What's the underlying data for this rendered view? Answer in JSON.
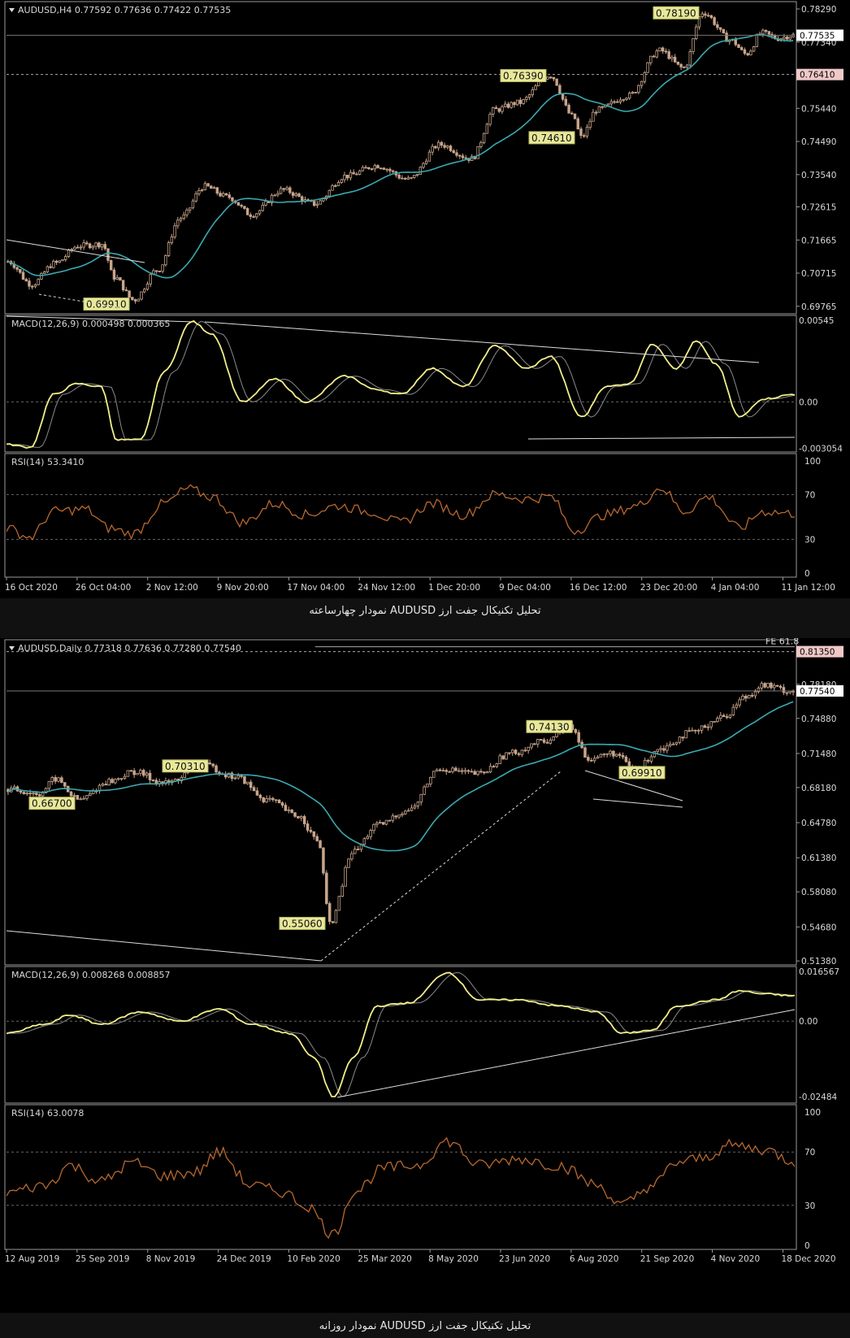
{
  "colors": {
    "background": "#000000",
    "frame": "#9a9a9a",
    "candle": "#c8a58c",
    "ma": "#3aa9b0",
    "macd": "#f2ee8a",
    "signal": "#8a8a8a",
    "rsi": "#b8682e",
    "annotation_bg": "#e8e89a",
    "annotation_border": "#b8b860",
    "price_box": "#ffffff",
    "level_box": "#f0c8c8"
  },
  "chart_data": [
    {
      "type": "candlestick",
      "symbol_header": "AUDUSD,H4  0.77592 0.77636 0.77422 0.77535",
      "price_ticks": [
        "0.78290",
        "0.77340",
        "0.75440",
        "0.74490",
        "0.73540",
        "0.72615",
        "0.71665",
        "0.70715",
        "0.69765"
      ],
      "price_range": [
        0.6955,
        0.785
      ],
      "current_price": "0.77535",
      "level_box": "0.76410",
      "annotations": [
        "0.78190",
        "0.76390",
        "0.74610",
        "0.69910"
      ],
      "anchors": [
        {
          "t": 0,
          "p": 0.7105
        },
        {
          "t": 0.03,
          "p": 0.704
        },
        {
          "t": 0.06,
          "p": 0.71
        },
        {
          "t": 0.09,
          "p": 0.715
        },
        {
          "t": 0.12,
          "p": 0.7155
        },
        {
          "t": 0.135,
          "p": 0.706
        },
        {
          "t": 0.16,
          "p": 0.6995
        },
        {
          "t": 0.19,
          "p": 0.708
        },
        {
          "t": 0.22,
          "p": 0.723
        },
        {
          "t": 0.25,
          "p": 0.732
        },
        {
          "t": 0.28,
          "p": 0.729
        },
        {
          "t": 0.31,
          "p": 0.724
        },
        {
          "t": 0.35,
          "p": 0.731
        },
        {
          "t": 0.39,
          "p": 0.727
        },
        {
          "t": 0.43,
          "p": 0.735
        },
        {
          "t": 0.47,
          "p": 0.738
        },
        {
          "t": 0.51,
          "p": 0.734
        },
        {
          "t": 0.55,
          "p": 0.744
        },
        {
          "t": 0.59,
          "p": 0.74
        },
        {
          "t": 0.62,
          "p": 0.754
        },
        {
          "t": 0.65,
          "p": 0.756
        },
        {
          "t": 0.69,
          "p": 0.7639
        },
        {
          "t": 0.72,
          "p": 0.752
        },
        {
          "t": 0.73,
          "p": 0.7461
        },
        {
          "t": 0.75,
          "p": 0.754
        },
        {
          "t": 0.79,
          "p": 0.758
        },
        {
          "t": 0.83,
          "p": 0.771
        },
        {
          "t": 0.86,
          "p": 0.766
        },
        {
          "t": 0.885,
          "p": 0.7819
        },
        {
          "t": 0.92,
          "p": 0.774
        },
        {
          "t": 0.94,
          "p": 0.77
        },
        {
          "t": 0.96,
          "p": 0.776
        },
        {
          "t": 0.98,
          "p": 0.7745
        },
        {
          "t": 1,
          "p": 0.7754
        }
      ],
      "macd_header": "MACD(12,26,9) 0.000498 0.000365",
      "macd_ticks": [
        "0.00545",
        "0.00",
        "-0.003054"
      ],
      "macd_range": [
        -0.0033,
        0.0057
      ],
      "macd_anchors": [
        {
          "t": 0,
          "v": -0.0028
        },
        {
          "t": 0.03,
          "v": -0.003
        },
        {
          "t": 0.06,
          "v": 0.0005
        },
        {
          "t": 0.09,
          "v": 0.0012
        },
        {
          "t": 0.12,
          "v": 0.001
        },
        {
          "t": 0.14,
          "v": -0.0025
        },
        {
          "t": 0.17,
          "v": -0.0025
        },
        {
          "t": 0.2,
          "v": 0.002
        },
        {
          "t": 0.235,
          "v": 0.0053
        },
        {
          "t": 0.26,
          "v": 0.0045
        },
        {
          "t": 0.3,
          "v": 0.0
        },
        {
          "t": 0.34,
          "v": 0.0015
        },
        {
          "t": 0.38,
          "v": 0.0
        },
        {
          "t": 0.43,
          "v": 0.0017
        },
        {
          "t": 0.47,
          "v": 0.0008
        },
        {
          "t": 0.5,
          "v": 0.0005
        },
        {
          "t": 0.54,
          "v": 0.0022
        },
        {
          "t": 0.58,
          "v": 0.001
        },
        {
          "t": 0.62,
          "v": 0.0037
        },
        {
          "t": 0.66,
          "v": 0.0022
        },
        {
          "t": 0.69,
          "v": 0.003
        },
        {
          "t": 0.73,
          "v": -0.001
        },
        {
          "t": 0.76,
          "v": 0.001
        },
        {
          "t": 0.79,
          "v": 0.0012
        },
        {
          "t": 0.82,
          "v": 0.0038
        },
        {
          "t": 0.85,
          "v": 0.0022
        },
        {
          "t": 0.875,
          "v": 0.004
        },
        {
          "t": 0.9,
          "v": 0.0025
        },
        {
          "t": 0.93,
          "v": -0.001
        },
        {
          "t": 0.96,
          "v": 0.0002
        },
        {
          "t": 1,
          "v": 0.0005
        }
      ],
      "rsi_header": "RSI(14) 53.3410",
      "rsi_ticks": [
        "100",
        "70",
        "30",
        "0"
      ],
      "rsi_anchors": [
        {
          "t": 0,
          "v": 40
        },
        {
          "t": 0.03,
          "v": 32
        },
        {
          "t": 0.06,
          "v": 55
        },
        {
          "t": 0.1,
          "v": 57
        },
        {
          "t": 0.13,
          "v": 40
        },
        {
          "t": 0.16,
          "v": 35
        },
        {
          "t": 0.2,
          "v": 62
        },
        {
          "t": 0.23,
          "v": 75
        },
        {
          "t": 0.26,
          "v": 68
        },
        {
          "t": 0.3,
          "v": 45
        },
        {
          "t": 0.34,
          "v": 62
        },
        {
          "t": 0.38,
          "v": 52
        },
        {
          "t": 0.42,
          "v": 60
        },
        {
          "t": 0.46,
          "v": 55
        },
        {
          "t": 0.5,
          "v": 45
        },
        {
          "t": 0.54,
          "v": 62
        },
        {
          "t": 0.58,
          "v": 52
        },
        {
          "t": 0.62,
          "v": 70
        },
        {
          "t": 0.66,
          "v": 66
        },
        {
          "t": 0.69,
          "v": 68
        },
        {
          "t": 0.72,
          "v": 38
        },
        {
          "t": 0.76,
          "v": 52
        },
        {
          "t": 0.8,
          "v": 60
        },
        {
          "t": 0.83,
          "v": 76
        },
        {
          "t": 0.86,
          "v": 55
        },
        {
          "t": 0.89,
          "v": 68
        },
        {
          "t": 0.93,
          "v": 40
        },
        {
          "t": 0.96,
          "v": 55
        },
        {
          "t": 1,
          "v": 53
        }
      ],
      "dates": [
        "16 Oct 2020",
        "26 Oct 04:00",
        "2 Nov 12:00",
        "9 Nov 20:00",
        "17 Nov 04:00",
        "24 Nov 12:00",
        "1 Dec 20:00",
        "9 Dec 04:00",
        "16 Dec 12:00",
        "23 Dec 20:00",
        "4 Jan 04:00",
        "11 Jan 12:00"
      ]
    },
    {
      "type": "candlestick",
      "symbol_header": "AUDUSD,Daily  0.77318 0.77636 0.77280 0.77540",
      "fe_label": "FE 61.8",
      "price_ticks": [
        "0.78180",
        "0.74880",
        "0.71480",
        "0.68180",
        "0.64780",
        "0.61380",
        "0.58080",
        "0.54680",
        "0.51380"
      ],
      "price_range": [
        0.51,
        0.825
      ],
      "current_price": "0.77540",
      "level_box": "0.81350",
      "annotations": [
        "0.74130",
        "0.70310",
        "0.66700",
        "0.69910",
        "0.55060"
      ],
      "anchors": [
        {
          "t": 0,
          "p": 0.68
        },
        {
          "t": 0.04,
          "p": 0.676
        },
        {
          "t": 0.06,
          "p": 0.69
        },
        {
          "t": 0.09,
          "p": 0.67
        },
        {
          "t": 0.13,
          "p": 0.688
        },
        {
          "t": 0.16,
          "p": 0.697
        },
        {
          "t": 0.2,
          "p": 0.686
        },
        {
          "t": 0.25,
          "p": 0.703
        },
        {
          "t": 0.29,
          "p": 0.692
        },
        {
          "t": 0.33,
          "p": 0.67
        },
        {
          "t": 0.37,
          "p": 0.654
        },
        {
          "t": 0.395,
          "p": 0.63
        },
        {
          "t": 0.41,
          "p": 0.551
        },
        {
          "t": 0.44,
          "p": 0.62
        },
        {
          "t": 0.47,
          "p": 0.645
        },
        {
          "t": 0.51,
          "p": 0.66
        },
        {
          "t": 0.55,
          "p": 0.7
        },
        {
          "t": 0.6,
          "p": 0.695
        },
        {
          "t": 0.64,
          "p": 0.715
        },
        {
          "t": 0.68,
          "p": 0.726
        },
        {
          "t": 0.715,
          "p": 0.741
        },
        {
          "t": 0.74,
          "p": 0.71
        },
        {
          "t": 0.77,
          "p": 0.715
        },
        {
          "t": 0.8,
          "p": 0.699
        },
        {
          "t": 0.83,
          "p": 0.72
        },
        {
          "t": 0.87,
          "p": 0.735
        },
        {
          "t": 0.91,
          "p": 0.75
        },
        {
          "t": 0.94,
          "p": 0.77
        },
        {
          "t": 0.96,
          "p": 0.781
        },
        {
          "t": 1,
          "p": 0.775
        }
      ],
      "macd_header": "MACD(12,26,9) 0.008268 0.008857",
      "macd_ticks": [
        "0.016567",
        "0.00",
        "-0.02484"
      ],
      "macd_range": [
        -0.027,
        0.018
      ],
      "macd_anchors": [
        {
          "t": 0,
          "v": -0.004
        },
        {
          "t": 0.05,
          "v": -0.001
        },
        {
          "t": 0.08,
          "v": 0.002
        },
        {
          "t": 0.12,
          "v": -0.001
        },
        {
          "t": 0.17,
          "v": 0.003
        },
        {
          "t": 0.22,
          "v": 0.0
        },
        {
          "t": 0.27,
          "v": 0.004
        },
        {
          "t": 0.31,
          "v": -0.001
        },
        {
          "t": 0.36,
          "v": -0.004
        },
        {
          "t": 0.39,
          "v": -0.012
        },
        {
          "t": 0.415,
          "v": -0.025
        },
        {
          "t": 0.44,
          "v": -0.012
        },
        {
          "t": 0.47,
          "v": 0.005
        },
        {
          "t": 0.51,
          "v": 0.006
        },
        {
          "t": 0.56,
          "v": 0.016
        },
        {
          "t": 0.6,
          "v": 0.007
        },
        {
          "t": 0.65,
          "v": 0.007
        },
        {
          "t": 0.7,
          "v": 0.005
        },
        {
          "t": 0.75,
          "v": 0.003
        },
        {
          "t": 0.78,
          "v": -0.004
        },
        {
          "t": 0.82,
          "v": -0.003
        },
        {
          "t": 0.85,
          "v": 0.005
        },
        {
          "t": 0.9,
          "v": 0.007
        },
        {
          "t": 0.93,
          "v": 0.01
        },
        {
          "t": 0.96,
          "v": 0.009
        },
        {
          "t": 1,
          "v": 0.0083
        }
      ],
      "rsi_header": "RSI(14) 63.0078",
      "rsi_ticks": [
        "100",
        "70",
        "30",
        "0"
      ],
      "rsi_anchors": [
        {
          "t": 0,
          "v": 40
        },
        {
          "t": 0.05,
          "v": 45
        },
        {
          "t": 0.08,
          "v": 60
        },
        {
          "t": 0.12,
          "v": 48
        },
        {
          "t": 0.16,
          "v": 62
        },
        {
          "t": 0.2,
          "v": 52
        },
        {
          "t": 0.24,
          "v": 55
        },
        {
          "t": 0.27,
          "v": 70
        },
        {
          "t": 0.31,
          "v": 45
        },
        {
          "t": 0.35,
          "v": 40
        },
        {
          "t": 0.38,
          "v": 30
        },
        {
          "t": 0.415,
          "v": 8
        },
        {
          "t": 0.44,
          "v": 40
        },
        {
          "t": 0.48,
          "v": 58
        },
        {
          "t": 0.52,
          "v": 60
        },
        {
          "t": 0.56,
          "v": 78
        },
        {
          "t": 0.6,
          "v": 60
        },
        {
          "t": 0.65,
          "v": 65
        },
        {
          "t": 0.7,
          "v": 60
        },
        {
          "t": 0.75,
          "v": 45
        },
        {
          "t": 0.78,
          "v": 30
        },
        {
          "t": 0.82,
          "v": 45
        },
        {
          "t": 0.85,
          "v": 62
        },
        {
          "t": 0.88,
          "v": 65
        },
        {
          "t": 0.92,
          "v": 75
        },
        {
          "t": 0.96,
          "v": 72
        },
        {
          "t": 1,
          "v": 63
        }
      ],
      "dates": [
        "12 Aug 2019",
        "25 Sep 2019",
        "8 Nov 2019",
        "24 Dec 2019",
        "10 Feb 2020",
        "25 Mar 2020",
        "8 May 2020",
        "23 Jun 2020",
        "6 Aug 2020",
        "21 Sep 2020",
        "4 Nov 2020",
        "18 Dec 2020"
      ]
    }
  ],
  "captions": [
    "تحلیل تکنیکال جفت ارز AUDUSD نمودار چهارساعته",
    "تحلیل تکنیکال جفت ارز AUDUSD نمودار روزانه"
  ]
}
